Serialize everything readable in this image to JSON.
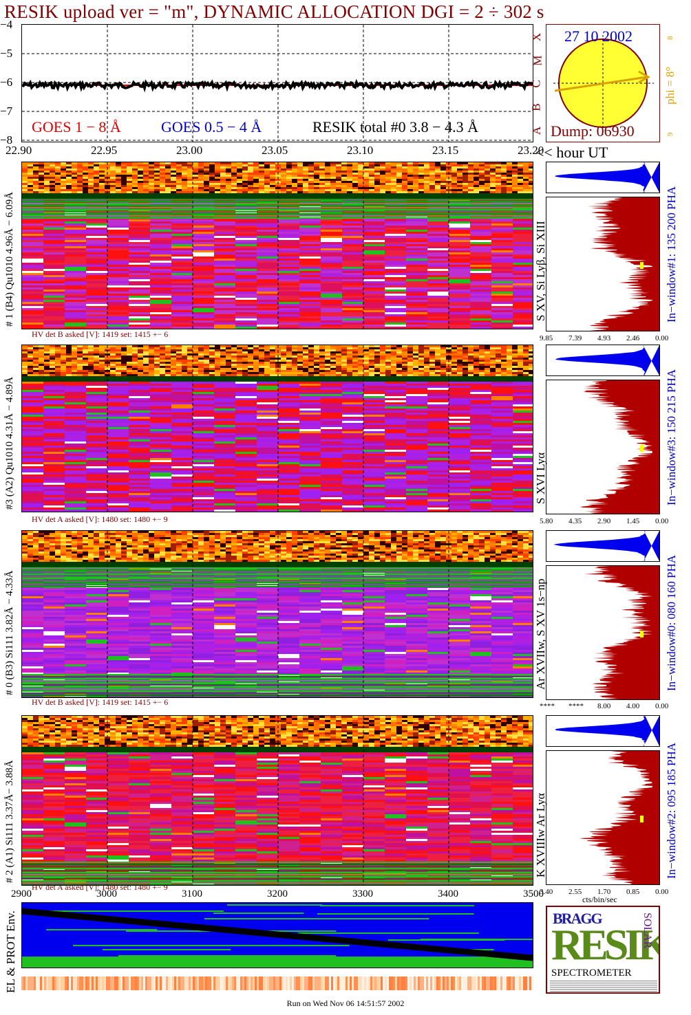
{
  "title": "RESIK upload ver = \"m\", DYNAMIC ALLOCATION  DGI =   2 ÷ 302 s",
  "colors": {
    "title": "#800000",
    "goes_long": "#e00000",
    "goes_short": "#0000cc",
    "resik": "#000000",
    "sun": "#ffff33",
    "spectrum_fill": "#b00000",
    "hist_fill": "#0000ee",
    "orange": "#d9a000",
    "env_bg": "#0000ee"
  },
  "lightcurve": {
    "legend": {
      "goes_long": "GOES 1 − 8 Å",
      "goes_short": "GOES 0.5 − 4 Å",
      "resik": "RESIK total #0  3.8 − 4.3 Å"
    },
    "class_labels": [
      "X",
      "M",
      "C",
      "B",
      "A"
    ],
    "y_ticks": [
      "−4",
      "−5",
      "−6",
      "−7",
      "−8"
    ],
    "x_ticks": [
      "22.90",
      "22.95",
      "23.00",
      "23.05",
      "23.10",
      "23.15",
      "23.20"
    ],
    "x_unit_label": "<< hour UT"
  },
  "sun_panel": {
    "date": "27 10 2002",
    "dump": "Dump: 06930",
    "phi_label": "phi =  8°",
    "phi_small_top": "8",
    "phi_small_bottom": "9"
  },
  "channels": [
    {
      "id": "ch1",
      "left_label": "# 1 (B4) Qu1010 4.96Å − 6.09Å",
      "ion_label": "S XV, Si Lyβ, Si XIII",
      "window_label": "In−window#1:  135 200 PHA",
      "hv": "HV det B asked [V]:  1419 set:  1415 +−    6",
      "spec_ticks": [
        "9.85",
        "7.39",
        "4.93",
        "2.46",
        "0.00"
      ]
    },
    {
      "id": "ch3",
      "left_label": "#3 (A2) Qu1010  4.31Å − 4.89Å",
      "ion_label": "S XVI Lyα",
      "window_label": "In−window#3:  150 215 PHA",
      "hv": "HV det A asked [V]:  1480 set:  1480 +−    9",
      "spec_ticks": [
        "5.80",
        "4.35",
        "2.90",
        "1.45",
        "0.00"
      ]
    },
    {
      "id": "ch0",
      "left_label": "# 0 (B3) Si111  3.82Å − 4.33Å",
      "ion_label": "Ar XVIIw,  S XV 1s−np",
      "window_label": "In−window#0:  080 160 PHA",
      "hv": "HV det B asked [V]:  1419 set:  1415 +−    6",
      "spec_ticks": [
        "****",
        "****",
        "8.00",
        "4.00",
        "0.00"
      ]
    },
    {
      "id": "ch2",
      "left_label": "# 2 (A1) Si111  3.37Å−  3.88Å",
      "ion_label": "K XVIIIw  Ar Lyα",
      "window_label": "In−window#2:  095 185 PHA",
      "hv": "HV det A asked [V]:  1480 set:  1480 +−    9",
      "spec_ticks": [
        "3.40",
        "2.55",
        "1.70",
        "0.85",
        "0.00"
      ]
    }
  ],
  "spec_unit": "cts/bin/sec",
  "bottom": {
    "x_ticks": [
      "2900",
      "3000",
      "3100",
      "3200",
      "3300",
      "3400",
      "3500"
    ],
    "env_label": "EL & PROT Env."
  },
  "logo": {
    "top": "BRAGG",
    "main": "RESIK",
    "side": "SOLAR",
    "bottom": "SPECTROMETER"
  },
  "run_line": "Run on Wed Nov 06 14:51:57 2002"
}
